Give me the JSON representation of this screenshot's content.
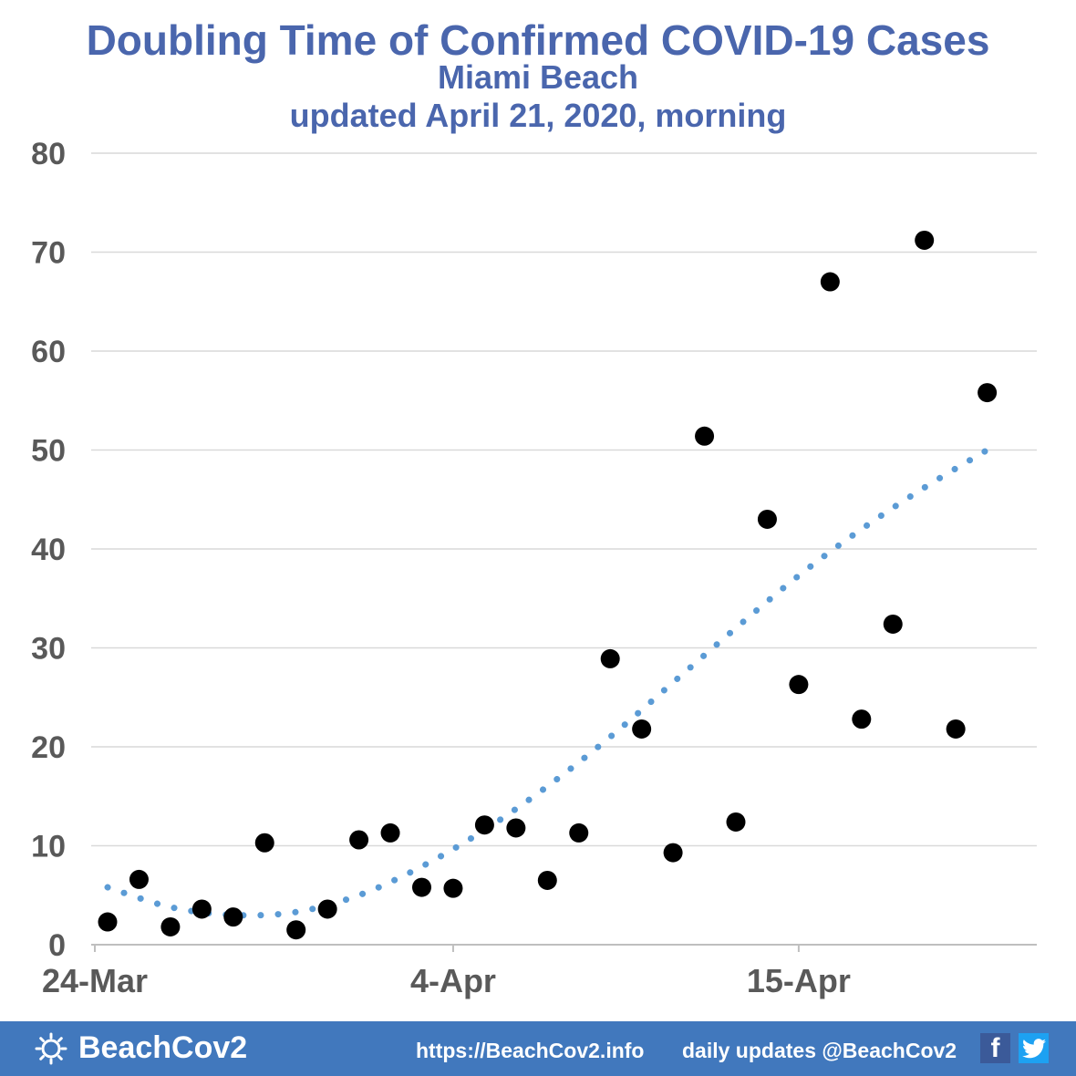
{
  "header": {
    "title": "Doubling Time of Confirmed COVID-19 Cases",
    "subtitle": "Miami Beach",
    "updated": "updated April 21, 2020, morning"
  },
  "chart_data": {
    "type": "scatter",
    "title": "Doubling Time of Confirmed COVID-19 Cases",
    "xlabel": "",
    "ylabel": "",
    "ylim": [
      0,
      80
    ],
    "y_ticks": [
      "0",
      "10",
      "20",
      "30",
      "40",
      "50",
      "60",
      "70",
      "80"
    ],
    "x_ticks": [
      "24-Mar",
      "4-Apr",
      "15-Apr"
    ],
    "grid": true,
    "legend": "none",
    "series": [
      {
        "type": "scatter",
        "color": "#000000",
        "points": [
          {
            "x": "24-Mar",
            "y": 2.3
          },
          {
            "x": "25-Mar",
            "y": 6.6
          },
          {
            "x": "26-Mar",
            "y": 1.8
          },
          {
            "x": "27-Mar",
            "y": 3.6
          },
          {
            "x": "28-Mar",
            "y": 2.8
          },
          {
            "x": "29-Mar",
            "y": 10.3
          },
          {
            "x": "30-Mar",
            "y": 1.5
          },
          {
            "x": "31-Mar",
            "y": 3.6
          },
          {
            "x": "1-Apr",
            "y": 10.6
          },
          {
            "x": "2-Apr",
            "y": 11.3
          },
          {
            "x": "3-Apr",
            "y": 5.8
          },
          {
            "x": "4-Apr",
            "y": 5.7
          },
          {
            "x": "5-Apr",
            "y": 12.1
          },
          {
            "x": "6-Apr",
            "y": 11.8
          },
          {
            "x": "7-Apr",
            "y": 6.5
          },
          {
            "x": "8-Apr",
            "y": 11.3
          },
          {
            "x": "9-Apr",
            "y": 28.9
          },
          {
            "x": "10-Apr",
            "y": 21.8
          },
          {
            "x": "11-Apr",
            "y": 9.3
          },
          {
            "x": "12-Apr",
            "y": 51.4
          },
          {
            "x": "13-Apr",
            "y": 12.4
          },
          {
            "x": "14-Apr",
            "y": 43.0
          },
          {
            "x": "15-Apr",
            "y": 26.3
          },
          {
            "x": "16-Apr",
            "y": 67.0
          },
          {
            "x": "17-Apr",
            "y": 22.8
          },
          {
            "x": "18-Apr",
            "y": 32.4
          },
          {
            "x": "19-Apr",
            "y": 71.2
          },
          {
            "x": "20-Apr",
            "y": 21.8
          },
          {
            "x": "21-Apr",
            "y": 55.8
          }
        ]
      },
      {
        "type": "trendline",
        "style": "dotted",
        "color": "#5b9bd5",
        "points": [
          {
            "x": "24-Mar",
            "y": 5.8
          },
          {
            "x": "26-Mar",
            "y": 3.8
          },
          {
            "x": "28-Mar",
            "y": 3.0
          },
          {
            "x": "30-Mar",
            "y": 3.3
          },
          {
            "x": "1-Apr",
            "y": 5.0
          },
          {
            "x": "3-Apr",
            "y": 7.9
          },
          {
            "x": "5-Apr",
            "y": 11.6
          },
          {
            "x": "7-Apr",
            "y": 16.0
          },
          {
            "x": "9-Apr",
            "y": 21.0
          },
          {
            "x": "11-Apr",
            "y": 26.5
          },
          {
            "x": "13-Apr",
            "y": 32.0
          },
          {
            "x": "15-Apr",
            "y": 37.3
          },
          {
            "x": "17-Apr",
            "y": 42.0
          },
          {
            "x": "19-Apr",
            "y": 46.2
          },
          {
            "x": "21-Apr",
            "y": 50.0
          }
        ]
      }
    ]
  },
  "footer": {
    "brand": "BeachCov2",
    "url": "https://BeachCov2.info",
    "updates": "daily updates @BeachCov2",
    "facebook_icon": "facebook-icon",
    "twitter_icon": "twitter-icon",
    "background_color": "#4178bd"
  }
}
